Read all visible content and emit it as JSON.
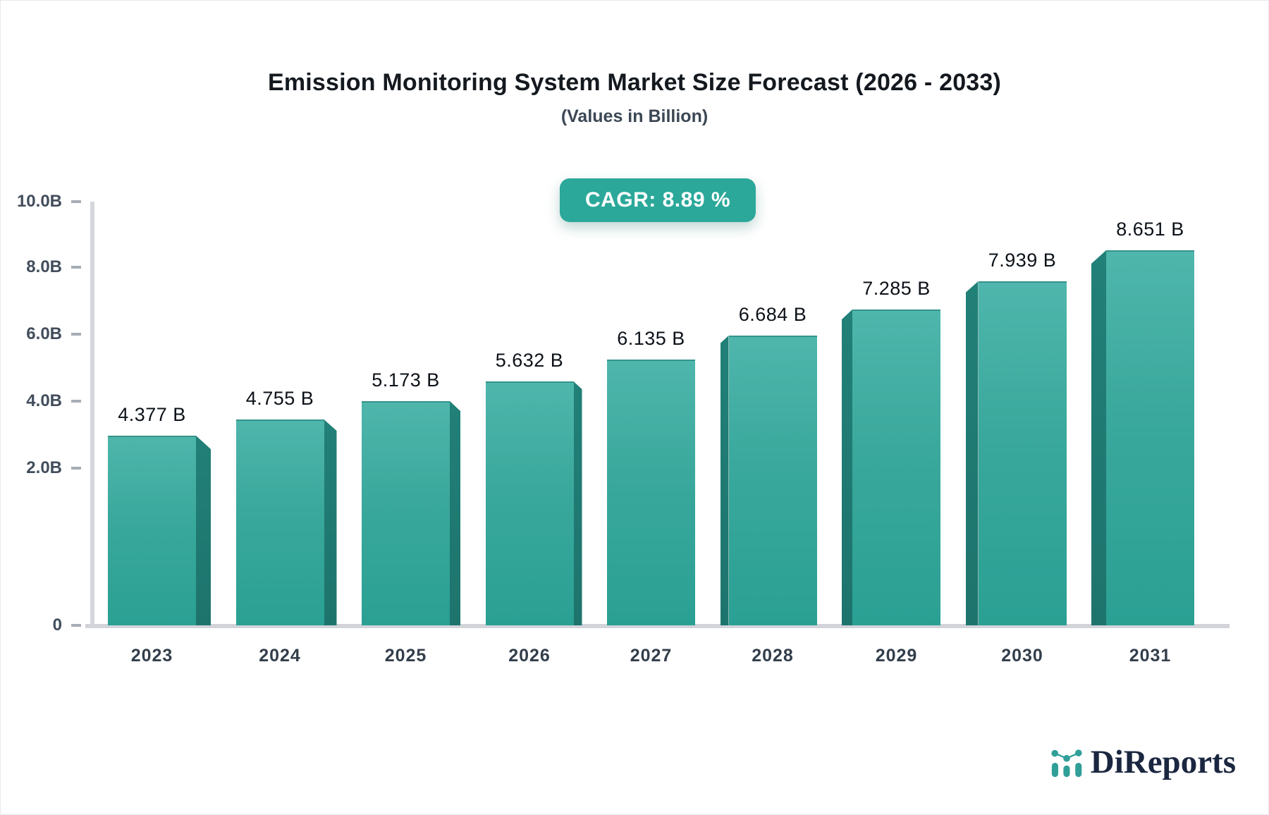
{
  "title": "Emission Monitoring System Market Size Forecast (2026 - 2033)",
  "subtitle": "(Values in Billion)",
  "badge": {
    "label": "CAGR: 8.89 %"
  },
  "chart_data": {
    "type": "bar",
    "categories": [
      "2023",
      "2024",
      "2025",
      "2026",
      "2027",
      "2028",
      "2029",
      "2030",
      "2031"
    ],
    "values": [
      4.377,
      4.755,
      5.173,
      5.632,
      6.135,
      6.684,
      7.285,
      7.939,
      8.651
    ],
    "bar_labels": [
      "4.377 B",
      "4.755 B",
      "5.173 B",
      "5.632 B",
      "6.135 B",
      "6.684 B",
      "7.285 B",
      "7.939 B",
      "8.651 B"
    ],
    "y_ticks": [
      "10.0B",
      "8.0B",
      "6.0B",
      "4.0B",
      "2.0B",
      "0"
    ],
    "ylim": [
      0,
      10
    ],
    "grid": "off",
    "legend": "none",
    "title": "Emission Monitoring System Market Size Forecast (2026 - 2033)",
    "xlabel": "",
    "ylabel": "Values in Billion"
  },
  "colors": {
    "accent_badge": "#2ba89a",
    "bar_face_top": "#4fb6ac",
    "bar_face_mid": "#3aa89c",
    "bar_face_bottom": "#2aa093",
    "bar_side_top": "#218078",
    "bar_side_bottom": "#1d746d",
    "axis_line": "#d5d7dd",
    "logo_text": "#1b2740",
    "logo_icon": "#2f9f98"
  },
  "logo": {
    "text": "DiReports",
    "icon": "bar-chart-logo-icon"
  }
}
